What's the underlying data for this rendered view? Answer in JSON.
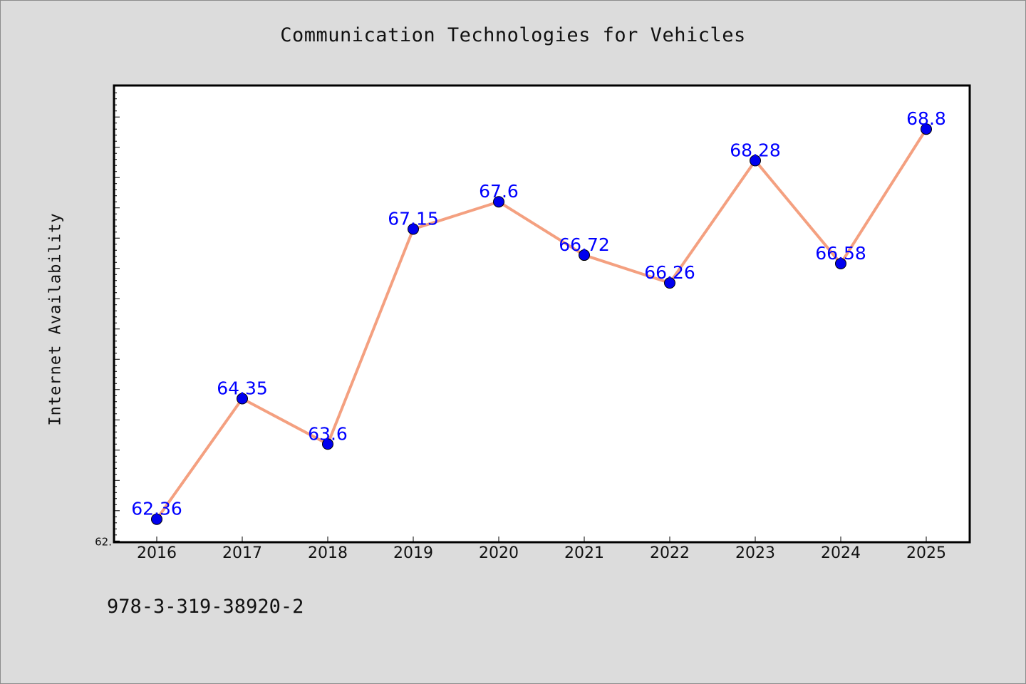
{
  "chart_data": {
    "type": "line",
    "title": "Communication Technologies for Vehicles",
    "xlabel": "",
    "ylabel": "Internet Availability",
    "categories": [
      "2016",
      "2017",
      "2018",
      "2019",
      "2020",
      "2021",
      "2022",
      "2023",
      "2024",
      "2025"
    ],
    "series": [
      {
        "values": [
          62.36,
          64.35,
          63.6,
          67.15,
          67.6,
          66.72,
          66.26,
          68.28,
          66.58,
          68.8
        ]
      }
    ],
    "data_labels": [
      "62.36",
      "64.35",
      "63.6",
      "67.15",
      "67.6",
      "66.72",
      "66.26",
      "68.28",
      "66.58",
      "68.8"
    ],
    "ylim": [
      61.98,
      69.52
    ],
    "y_tick_labels_visible": [
      "62."
    ],
    "grid": false,
    "line_color": "#f4a080",
    "marker_color": "#0000ee",
    "label_color": "#0000ff",
    "plot_background": "#ffffff",
    "figure_background": "#dcdcdc"
  },
  "footnote": "978-3-319-38920-2"
}
